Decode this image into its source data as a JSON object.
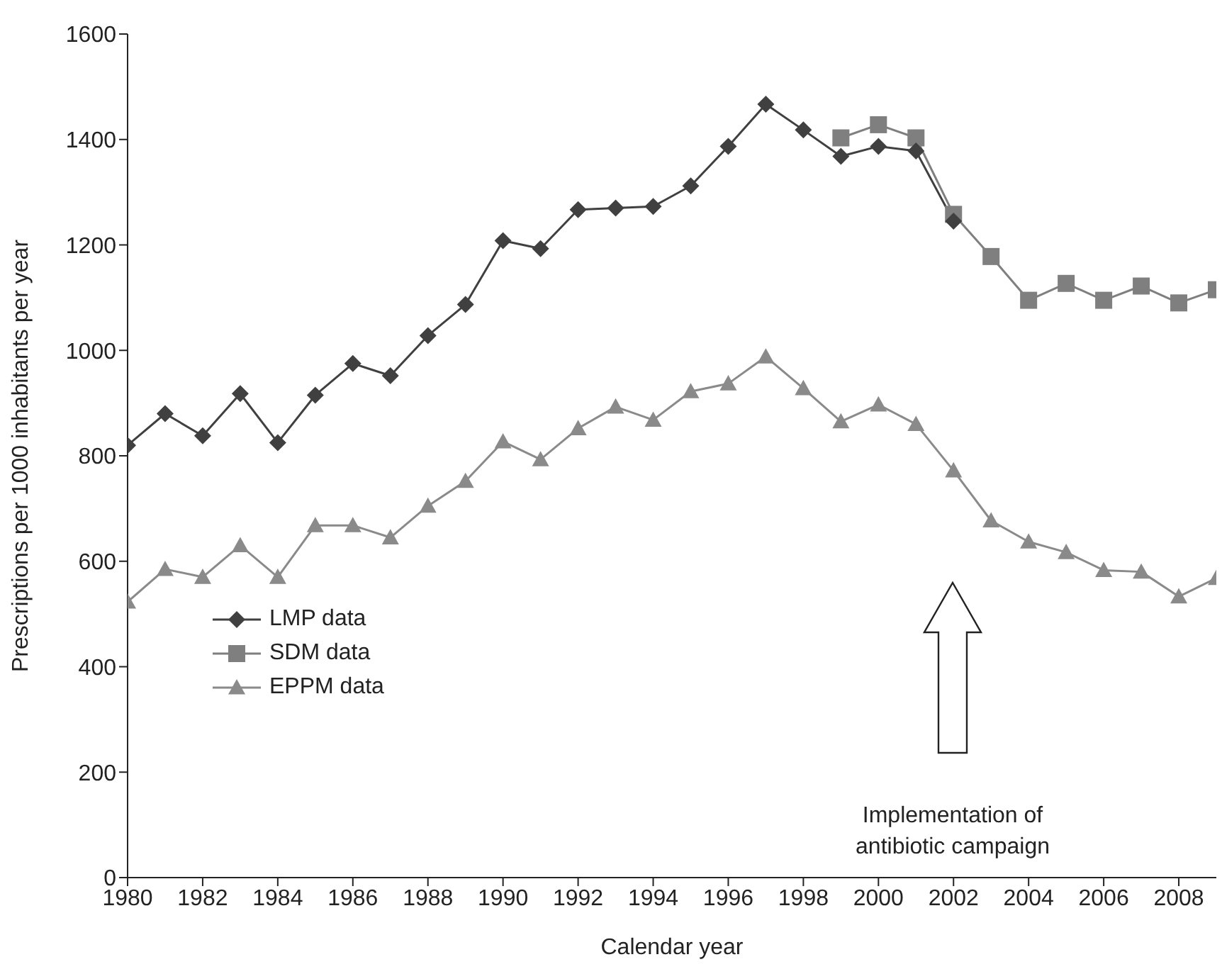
{
  "chart_data": {
    "type": "line",
    "xlabel": "Calendar year",
    "ylabel": "Prescriptions per 1000 inhabitants per year",
    "xlim": [
      1980,
      2009
    ],
    "xticks": [
      1980,
      1982,
      1984,
      1986,
      1988,
      1990,
      1992,
      1994,
      1996,
      1998,
      2000,
      2002,
      2004,
      2006,
      2008
    ],
    "ylim": [
      0,
      1600
    ],
    "yticks": [
      0,
      200,
      400,
      600,
      800,
      1000,
      1200,
      1400,
      1600
    ],
    "grid": false,
    "legend": "bottom left",
    "annotations": [
      "Implementation of\nantibiotic campaign"
    ],
    "series": [
      {
        "name": "LMP data",
        "color": "#404040",
        "marker": "diamond",
        "x": [
          1980,
          1981,
          1982,
          1983,
          1984,
          1985,
          1986,
          1987,
          1988,
          1989,
          1990,
          1991,
          1992,
          1993,
          1994,
          1995,
          1996,
          1997,
          1998,
          1999,
          2000,
          2001,
          2002
        ],
        "values": [
          820,
          880,
          838,
          918,
          825,
          915,
          975,
          952,
          1028,
          1087,
          1208,
          1193,
          1267,
          1270,
          1273,
          1312,
          1387,
          1467,
          1418,
          1368,
          1387,
          1378,
          1245
        ]
      },
      {
        "name": "SDM data",
        "color": "#7f7f7f",
        "marker": "square",
        "x": [
          1999,
          2000,
          2001,
          2002,
          2003,
          2004,
          2005,
          2006,
          2007,
          2008,
          2009
        ],
        "values": [
          1403,
          1428,
          1403,
          1258,
          1178,
          1095,
          1127,
          1095,
          1122,
          1090,
          1115
        ]
      },
      {
        "name": "EPPM data",
        "color": "#8a8a8a",
        "marker": "triangle",
        "x": [
          1980,
          1981,
          1982,
          1983,
          1984,
          1985,
          1986,
          1987,
          1988,
          1989,
          1990,
          1991,
          1992,
          1993,
          1994,
          1995,
          1996,
          1997,
          1998,
          1999,
          2000,
          2001,
          2002,
          2003,
          2004,
          2005,
          2006,
          2007,
          2008,
          2009
        ],
        "values": [
          523,
          585,
          570,
          630,
          570,
          668,
          668,
          645,
          705,
          752,
          827,
          793,
          852,
          893,
          868,
          922,
          937,
          988,
          928,
          865,
          897,
          860,
          772,
          677,
          637,
          617,
          583,
          580,
          533,
          568
        ]
      }
    ]
  }
}
